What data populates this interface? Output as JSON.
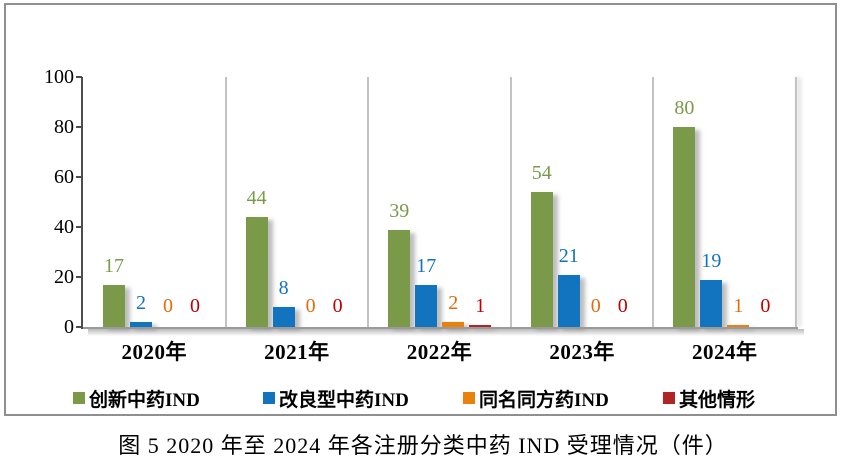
{
  "figure": {
    "caption": "图 5  2020 年至 2024 年各注册分类中药 IND 受理情况（件）"
  },
  "chart_data": {
    "type": "bar",
    "title": "2020 年至 2024 年各注册分类中药 IND 受理情况（件）",
    "categories": [
      "2020年",
      "2021年",
      "2022年",
      "2023年",
      "2024年"
    ],
    "series": [
      {
        "name": "创新中药IND",
        "color": "#7A9A49",
        "label_color": "#7A9A49",
        "values": [
          17,
          44,
          39,
          54,
          80
        ]
      },
      {
        "name": "改良型中药IND",
        "color": "#1273BF",
        "label_color": "#1273BF",
        "values": [
          2,
          8,
          17,
          21,
          19
        ]
      },
      {
        "name": "同名同方药IND",
        "color": "#E8820C",
        "label_color": "#E36C0A",
        "values": [
          0,
          0,
          2,
          0,
          1
        ]
      },
      {
        "name": "其他情形",
        "color": "#B02425",
        "label_color": "#C00000",
        "values": [
          0,
          0,
          1,
          0,
          0
        ]
      }
    ],
    "xlabel": "",
    "ylabel": "",
    "ylim": [
      0,
      100
    ],
    "yticks": [
      0,
      20,
      40,
      60,
      80,
      100
    ],
    "grid": "vertical-category-separators",
    "legend_position": "bottom",
    "data_labels": true
  }
}
